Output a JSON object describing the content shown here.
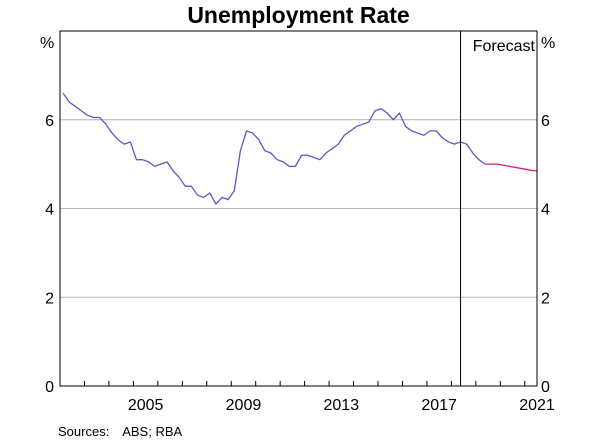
{
  "chart_data": {
    "type": "line",
    "title": "Unemployment Rate",
    "ylabel_left": "%",
    "ylabel_right": "%",
    "ylim": [
      0,
      8
    ],
    "xlim": [
      2002.0,
      2021.5
    ],
    "yticks": [
      0,
      2,
      4,
      6
    ],
    "xticks": [
      2005,
      2009,
      2013,
      2017,
      2021
    ],
    "grid": true,
    "forecast_start": 2018.375,
    "forecast_label": "Forecast",
    "series": [
      {
        "role": "actual",
        "color": "#6a50c8",
        "points": [
          [
            2002.125,
            6.6
          ],
          [
            2002.375,
            6.4
          ],
          [
            2002.625,
            6.3
          ],
          [
            2002.875,
            6.2
          ],
          [
            2003.125,
            6.1
          ],
          [
            2003.375,
            6.05
          ],
          [
            2003.625,
            6.05
          ],
          [
            2003.875,
            5.9
          ],
          [
            2004.125,
            5.7
          ],
          [
            2004.375,
            5.55
          ],
          [
            2004.625,
            5.45
          ],
          [
            2004.875,
            5.5
          ],
          [
            2005.125,
            5.1
          ],
          [
            2005.375,
            5.1
          ],
          [
            2005.625,
            5.05
          ],
          [
            2005.875,
            4.95
          ],
          [
            2006.125,
            5.0
          ],
          [
            2006.375,
            5.05
          ],
          [
            2006.625,
            4.85
          ],
          [
            2006.875,
            4.7
          ],
          [
            2007.125,
            4.5
          ],
          [
            2007.375,
            4.5
          ],
          [
            2007.625,
            4.3
          ],
          [
            2007.875,
            4.25
          ],
          [
            2008.125,
            4.35
          ],
          [
            2008.375,
            4.1
          ],
          [
            2008.625,
            4.25
          ],
          [
            2008.875,
            4.2
          ],
          [
            2009.125,
            4.4
          ],
          [
            2009.375,
            5.3
          ],
          [
            2009.625,
            5.75
          ],
          [
            2009.875,
            5.7
          ],
          [
            2010.125,
            5.55
          ],
          [
            2010.375,
            5.3
          ],
          [
            2010.625,
            5.25
          ],
          [
            2010.875,
            5.1
          ],
          [
            2011.125,
            5.05
          ],
          [
            2011.375,
            4.95
          ],
          [
            2011.625,
            4.95
          ],
          [
            2011.875,
            5.2
          ],
          [
            2012.125,
            5.2
          ],
          [
            2012.375,
            5.15
          ],
          [
            2012.625,
            5.1
          ],
          [
            2012.875,
            5.25
          ],
          [
            2013.125,
            5.35
          ],
          [
            2013.375,
            5.45
          ],
          [
            2013.625,
            5.65
          ],
          [
            2013.875,
            5.75
          ],
          [
            2014.125,
            5.85
          ],
          [
            2014.375,
            5.9
          ],
          [
            2014.625,
            5.95
          ],
          [
            2014.875,
            6.2
          ],
          [
            2015.125,
            6.25
          ],
          [
            2015.375,
            6.15
          ],
          [
            2015.625,
            6.0
          ],
          [
            2015.875,
            6.15
          ],
          [
            2016.125,
            5.85
          ],
          [
            2016.375,
            5.75
          ],
          [
            2016.625,
            5.7
          ],
          [
            2016.875,
            5.65
          ],
          [
            2017.125,
            5.75
          ],
          [
            2017.375,
            5.75
          ],
          [
            2017.625,
            5.6
          ],
          [
            2017.875,
            5.5
          ],
          [
            2018.125,
            5.45
          ],
          [
            2018.375,
            5.5
          ],
          [
            2018.625,
            5.45
          ],
          [
            2018.875,
            5.25
          ],
          [
            2019.125,
            5.1
          ],
          [
            2019.375,
            5.0
          ]
        ]
      },
      {
        "role": "forecast",
        "color": "#cc1f7a",
        "points": [
          [
            2019.375,
            5.0
          ],
          [
            2019.875,
            5.0
          ],
          [
            2020.375,
            4.95
          ],
          [
            2020.875,
            4.9
          ],
          [
            2021.375,
            4.85
          ],
          [
            2021.5,
            4.85
          ]
        ]
      }
    ]
  },
  "footer": {
    "sources_label": "Sources:",
    "sources_text": "ABS; RBA"
  }
}
